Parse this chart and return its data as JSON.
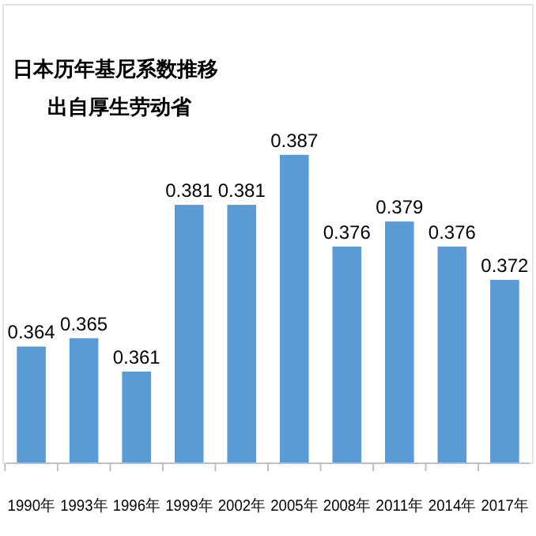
{
  "chart_data": {
    "type": "bar",
    "title": "日本历年基尼系数推移",
    "subtitle": "出自厚生劳动省",
    "categories": [
      "1990年",
      "1993年",
      "1996年",
      "1999年",
      "2002年",
      "2005年",
      "2008年",
      "2011年",
      "2014年",
      "2017年"
    ],
    "values": [
      0.364,
      0.365,
      0.361,
      0.381,
      0.381,
      0.387,
      0.376,
      0.379,
      0.376,
      0.372
    ],
    "color": "#5b9bd5",
    "ylim": [
      0.35,
      0.405
    ],
    "data_labels": true,
    "tick_labels": "x"
  }
}
